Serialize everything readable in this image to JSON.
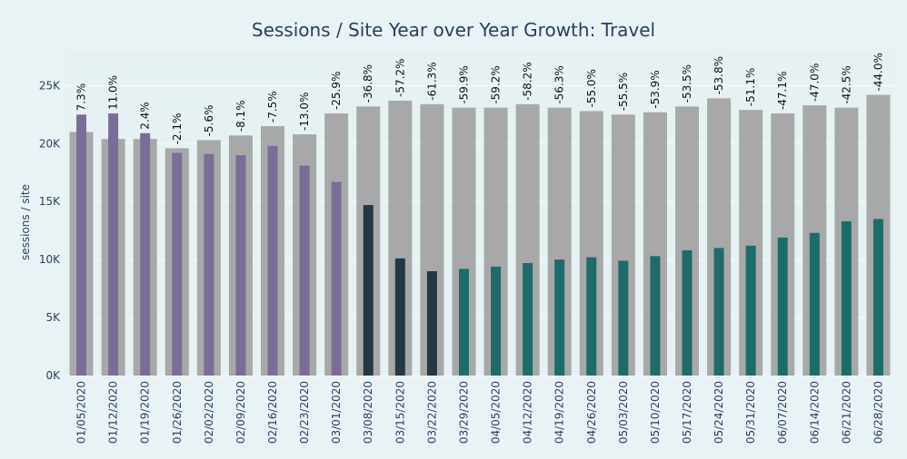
{
  "chart_data": {
    "type": "bar",
    "title": "Sessions / Site Year over Year Growth: Travel",
    "xlabel": "",
    "ylabel": "sessions / site",
    "ylim": [
      0,
      28000
    ],
    "yticks": [
      0,
      5000,
      10000,
      15000,
      20000,
      25000
    ],
    "ytick_labels": [
      "0K",
      "5K",
      "10K",
      "15K",
      "20K",
      "25K"
    ],
    "grid": true,
    "legend": "none",
    "categories": [
      "01/05/2020",
      "01/12/2020",
      "01/19/2020",
      "01/26/2020",
      "02/02/2020",
      "02/09/2020",
      "02/16/2020",
      "02/23/2020",
      "03/01/2020",
      "03/08/2020",
      "03/15/2020",
      "03/22/2020",
      "03/29/2020",
      "04/05/2020",
      "04/12/2020",
      "04/19/2020",
      "04/26/2020",
      "05/03/2020",
      "05/10/2020",
      "05/17/2020",
      "05/24/2020",
      "05/31/2020",
      "06/07/2020",
      "06/14/2020",
      "06/21/2020",
      "06/28/2020"
    ],
    "series": [
      {
        "values": [
          21000,
          20400,
          20400,
          19600,
          20300,
          20700,
          21500,
          20800,
          22600,
          23200,
          23700,
          23400,
          23100,
          23100,
          23400,
          23100,
          22800,
          22500,
          22700,
          23200,
          23900,
          22900,
          22600,
          23300,
          23100,
          24200
        ],
        "color": "#a7a9a8"
      },
      {
        "values": [
          22500,
          22600,
          20900,
          19200,
          19100,
          19000,
          19800,
          18100,
          16700,
          14700,
          10100,
          9000,
          9200,
          9400,
          9700,
          10000,
          10200,
          9900,
          10300,
          10800,
          11000,
          11200,
          11900,
          12300,
          13300,
          13500
        ],
        "colors": [
          "#7a6e99",
          "#7a6e99",
          "#7a6e99",
          "#7a6e99",
          "#7a6e99",
          "#7a6e99",
          "#7a6e99",
          "#7a6e99",
          "#7a6e99",
          "#233845",
          "#233845",
          "#233845",
          "#1f6b6b",
          "#1f6b6b",
          "#1f6b6b",
          "#1f6b6b",
          "#1f6b6b",
          "#1f6b6b",
          "#1f6b6b",
          "#1f6b6b",
          "#1f6b6b",
          "#1f6b6b",
          "#1f6b6b",
          "#1f6b6b",
          "#1f6b6b",
          "#1f6b6b"
        ]
      }
    ],
    "data_labels": [
      "7.3%",
      "11.0%",
      "2.4%",
      "-2.1%",
      "-5.6%",
      "-8.1%",
      "-7.5%",
      "-13.0%",
      "-25.9%",
      "-36.8%",
      "-57.2%",
      "-61.3%",
      "-59.9%",
      "-59.2%",
      "-58.2%",
      "-56.3%",
      "-55.0%",
      "-55.5%",
      "-53.9%",
      "-53.5%",
      "-53.8%",
      "-51.1%",
      "-47.1%",
      "-47.0%",
      "-42.5%",
      "-44.0%"
    ]
  },
  "colors": {
    "background": "#e9f3f5",
    "plot_background": "#e6f1f3",
    "grid": "#f7fbfb",
    "text": "#2a3f5f"
  }
}
